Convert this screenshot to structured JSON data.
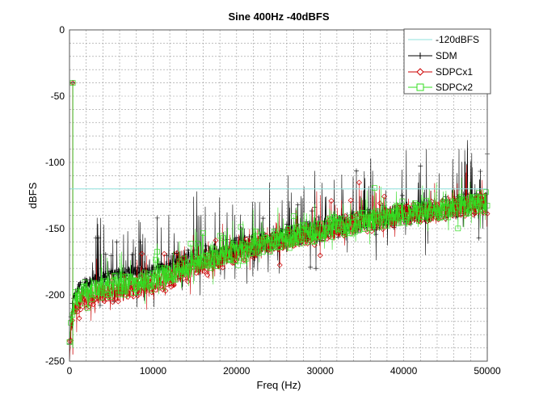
{
  "chart_data": {
    "type": "line",
    "title": "Sine 400Hz -40dBFS",
    "xlabel": "Freq (Hz)",
    "ylabel": "dBFS",
    "xlim": [
      0,
      50000
    ],
    "ylim": [
      -250,
      0
    ],
    "xticks": [
      0,
      10000,
      20000,
      30000,
      40000,
      50000
    ],
    "yticks": [
      0,
      -50,
      -100,
      -150,
      -200,
      -250
    ],
    "xtick_labels": [
      "0",
      "10000",
      "20000",
      "30000",
      "40000",
      "50000"
    ],
    "ytick_labels": [
      "0",
      "-50",
      "-100",
      "-150",
      "-200",
      "-250"
    ],
    "grid": true,
    "legend_position": "top-right",
    "reference_line": {
      "name": "-120dBFS",
      "y": -120,
      "color": "#8fe0dc"
    },
    "tone": {
      "x": 400,
      "y": -40
    },
    "series": [
      {
        "name": "SDM",
        "color": "#000000",
        "marker": "plus",
        "trend": [
          [
            0,
            -240
          ],
          [
            300,
            -205
          ],
          [
            1000,
            -195
          ],
          [
            3000,
            -188
          ],
          [
            6000,
            -184
          ],
          [
            10000,
            -181
          ],
          [
            13000,
            -176
          ],
          [
            20000,
            -165
          ],
          [
            30000,
            -150
          ],
          [
            40000,
            -139
          ],
          [
            50000,
            -130
          ]
        ],
        "spread": 9,
        "spike": 45
      },
      {
        "name": "SDPCx1",
        "color": "#cc0000",
        "marker": "diamond",
        "trend": [
          [
            0,
            -245
          ],
          [
            300,
            -215
          ],
          [
            1000,
            -205
          ],
          [
            3000,
            -200
          ],
          [
            6000,
            -197
          ],
          [
            10000,
            -193
          ],
          [
            15000,
            -180
          ],
          [
            20000,
            -168
          ],
          [
            30000,
            -152
          ],
          [
            40000,
            -140
          ],
          [
            50000,
            -131
          ]
        ],
        "spread": 8,
        "spike": 25
      },
      {
        "name": "SDPCx2",
        "color": "#33dd22",
        "marker": "square",
        "trend": [
          [
            0,
            -240
          ],
          [
            300,
            -210
          ],
          [
            1000,
            -200
          ],
          [
            3000,
            -195
          ],
          [
            6000,
            -193
          ],
          [
            10000,
            -189
          ],
          [
            15000,
            -177
          ],
          [
            20000,
            -167
          ],
          [
            30000,
            -151
          ],
          [
            40000,
            -139
          ],
          [
            50000,
            -130
          ]
        ],
        "spread": 8,
        "spike": 22
      }
    ]
  }
}
